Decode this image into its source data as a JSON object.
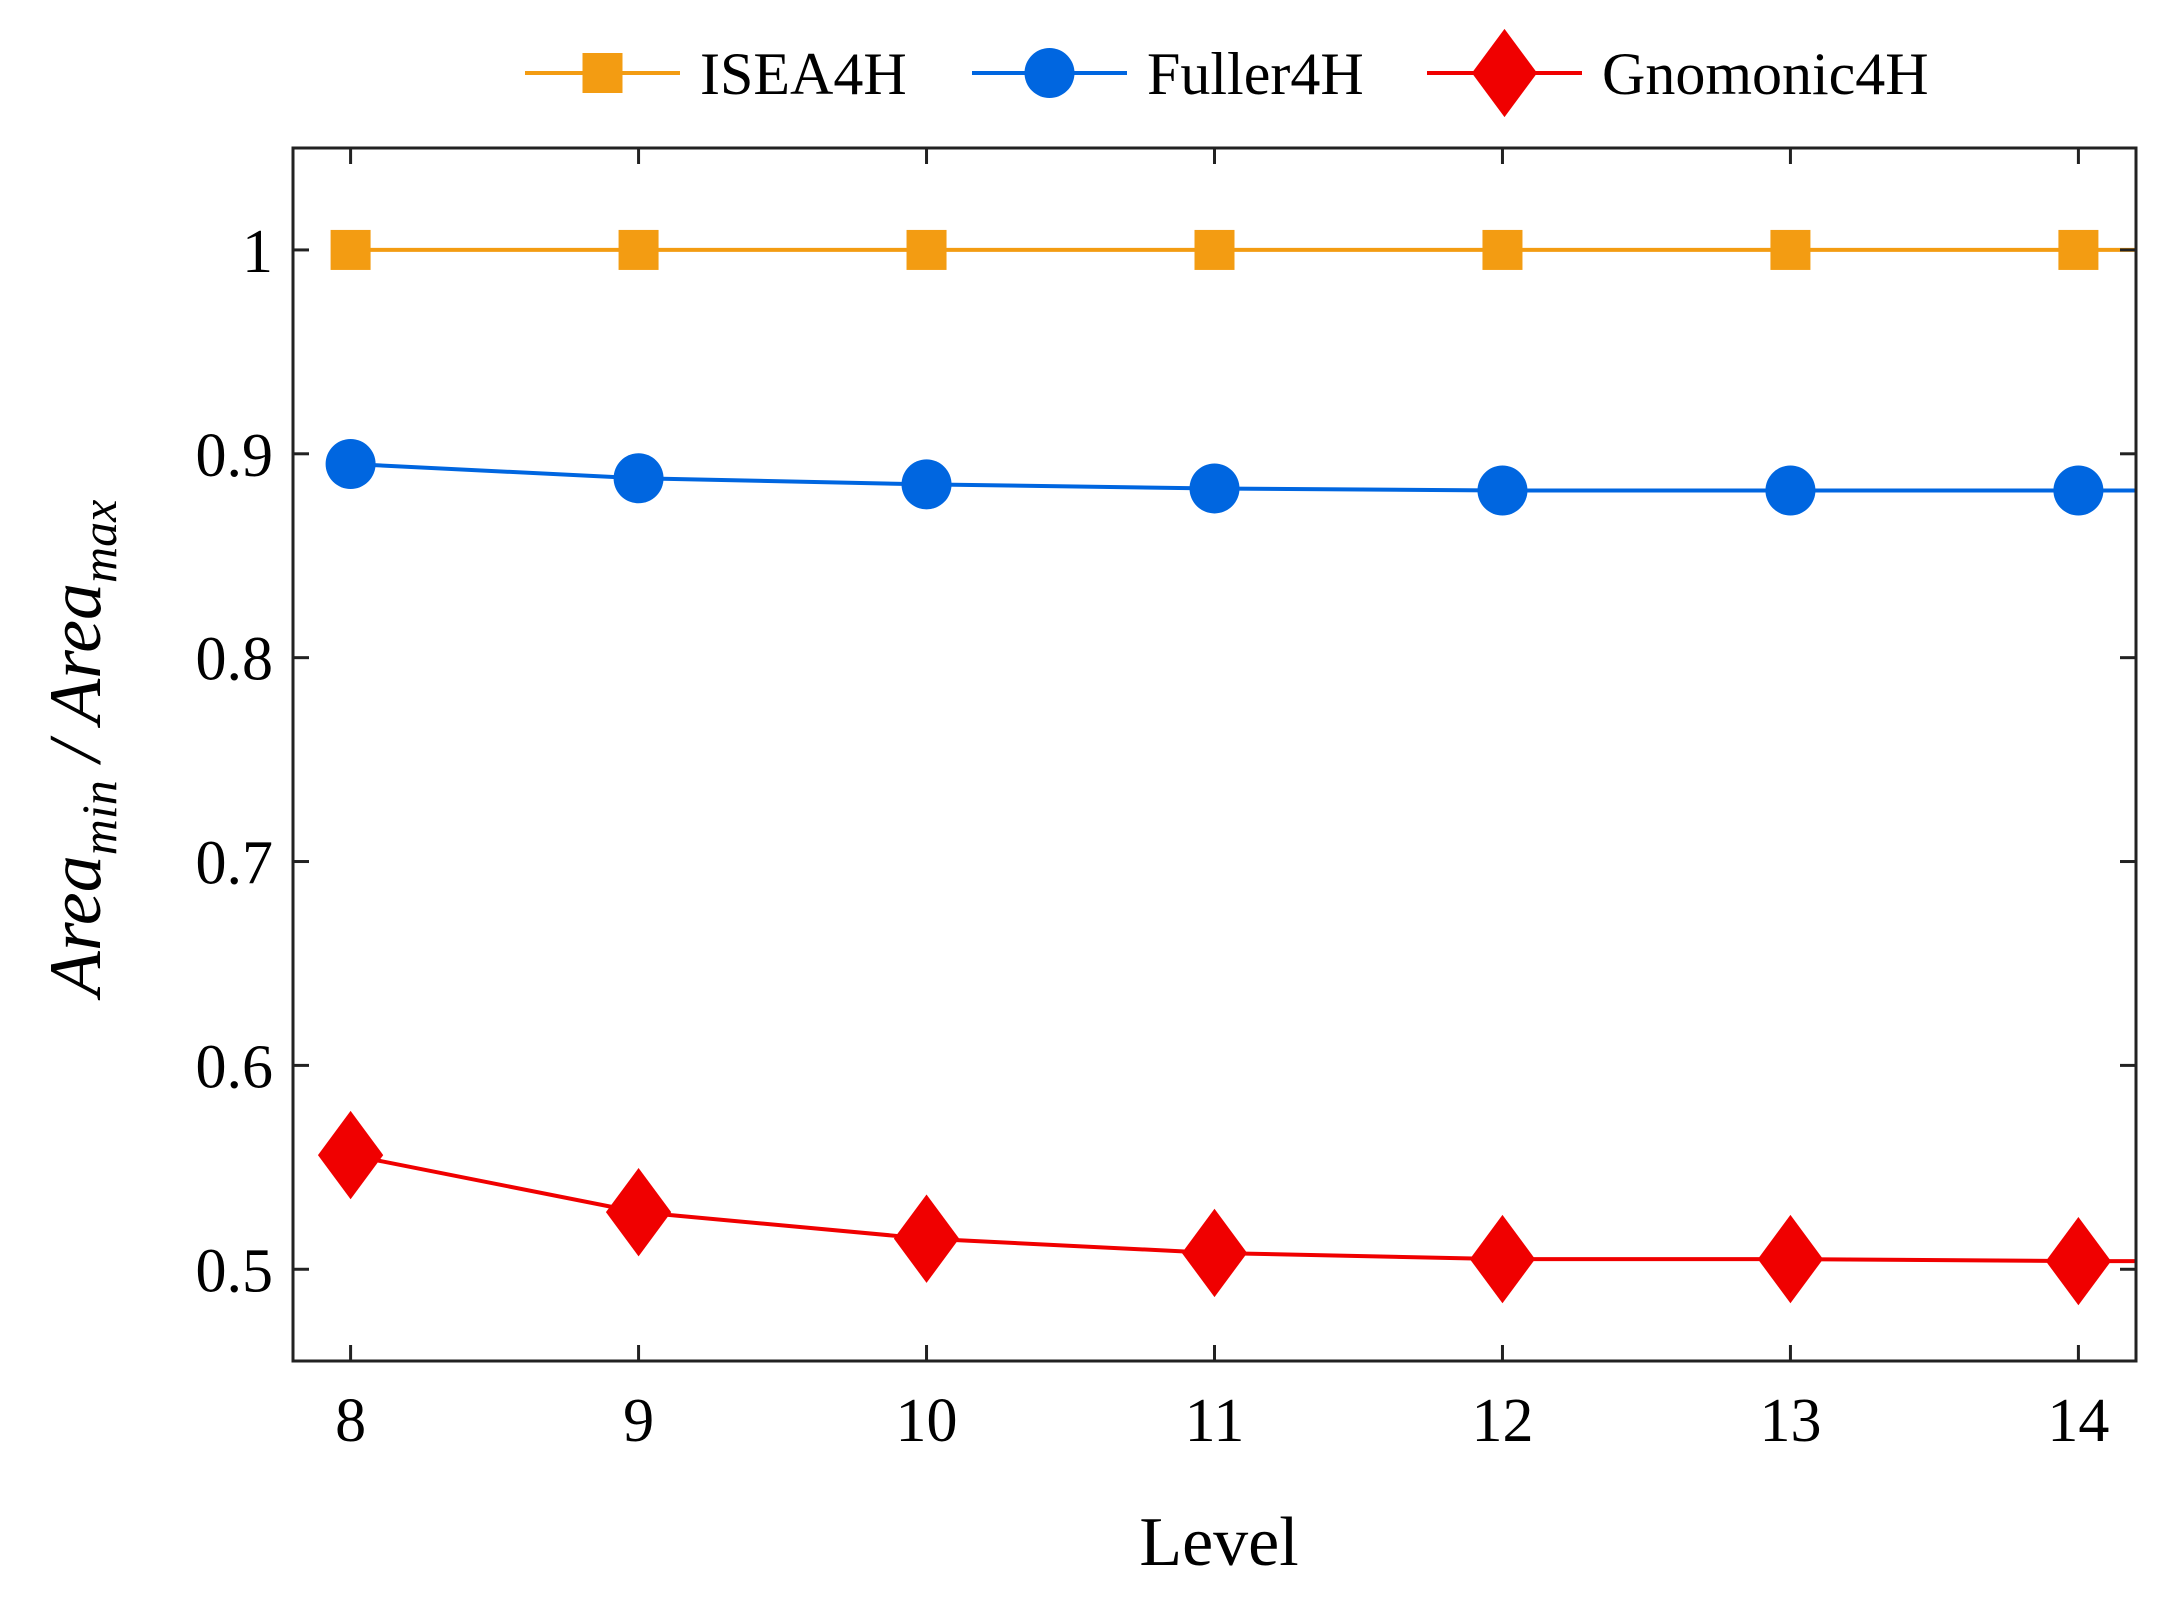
{
  "chart_data": {
    "type": "line",
    "title": "",
    "xlabel": "Level",
    "ylabel": {
      "parts": [
        "Area",
        "min",
        " / ",
        "Area",
        "max"
      ]
    },
    "x": [
      8,
      9,
      10,
      11,
      12,
      13,
      14
    ],
    "xlim": [
      7.8,
      14.2
    ],
    "ylim": [
      0.455,
      1.05
    ],
    "xticks": [
      8,
      9,
      10,
      11,
      12,
      13,
      14
    ],
    "yticks": [
      0.5,
      0.6,
      0.7,
      0.8,
      0.9,
      1
    ],
    "ytick_labels": [
      "0.5",
      "0.6",
      "0.7",
      "0.8",
      "0.9",
      "1"
    ],
    "grid": false,
    "legend_position": "top",
    "series": [
      {
        "name": "ISEA4H",
        "color": "#f39c12",
        "marker": "square",
        "values": [
          1.0,
          1.0,
          1.0,
          1.0,
          1.0,
          1.0,
          1.0
        ]
      },
      {
        "name": "Fuller4H",
        "color": "#0066e0",
        "marker": "circle",
        "values": [
          0.895,
          0.888,
          0.885,
          0.883,
          0.882,
          0.882,
          0.882
        ]
      },
      {
        "name": "Gnomonic4H",
        "color": "#f00000",
        "marker": "diamond",
        "values": [
          0.556,
          0.528,
          0.515,
          0.508,
          0.505,
          0.505,
          0.504
        ]
      }
    ]
  }
}
